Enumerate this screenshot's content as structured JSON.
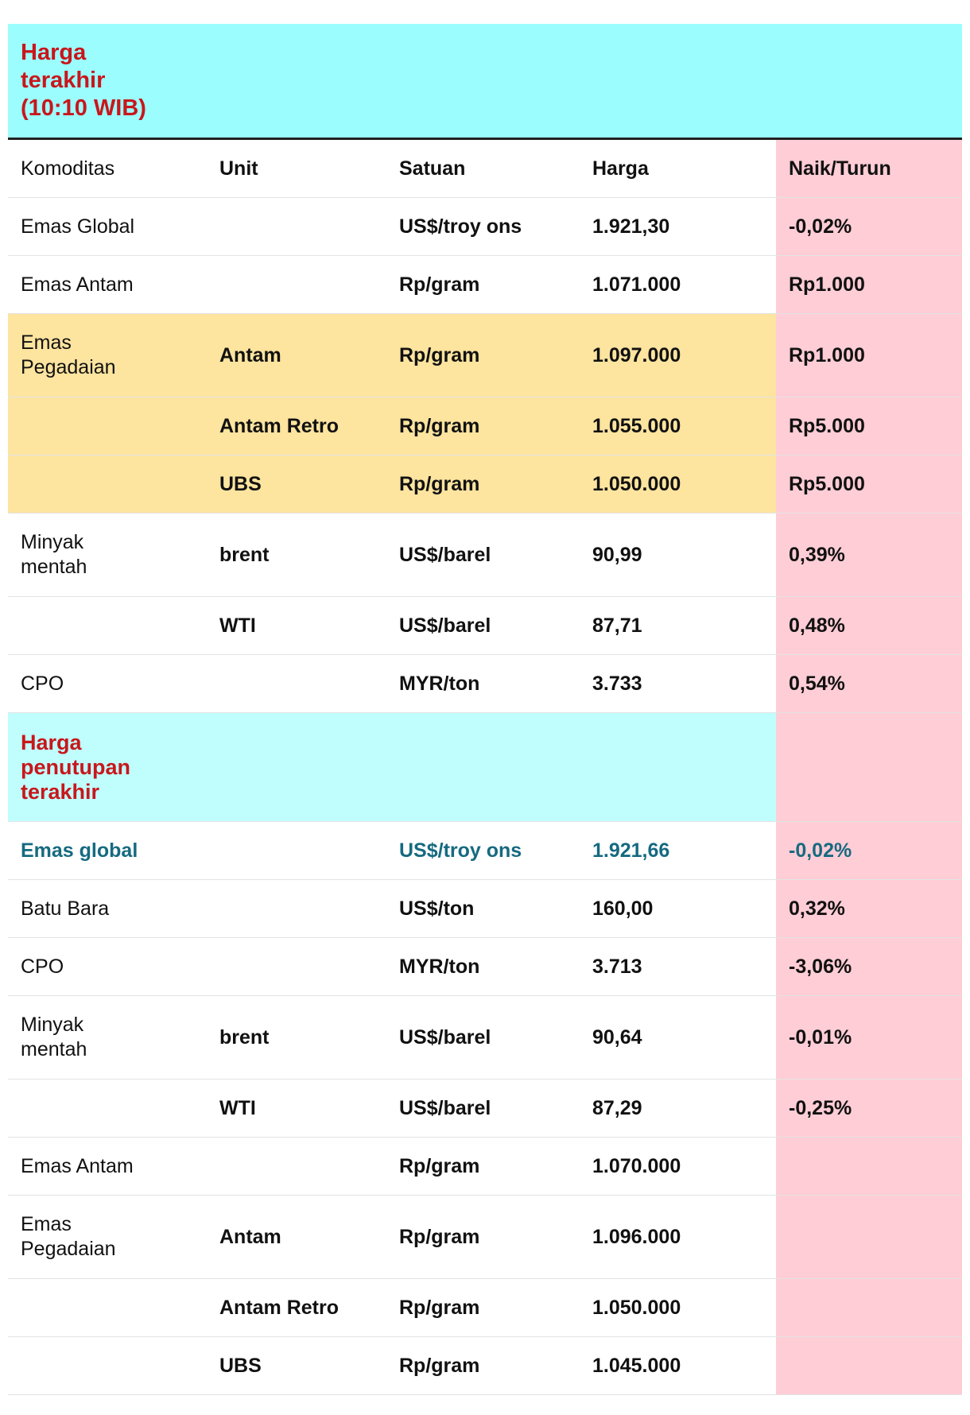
{
  "title_top": "Harga terakhir (10:10 WIB)",
  "title_closing": "Harga penutupan terakhir",
  "headers": {
    "komoditas": "Komoditas",
    "unit": "Unit",
    "satuan": "Satuan",
    "harga": "Harga",
    "naik_turun": "Naik/Turun"
  },
  "latest_rows": [
    {
      "komoditas": "Emas Global",
      "unit": "",
      "satuan": "US$/troy ons",
      "harga": "1.921,30",
      "change": "-0,02%"
    },
    {
      "komoditas": "Emas Antam",
      "unit": "",
      "satuan": "Rp/gram",
      "harga": "1.071.000",
      "change": "Rp1.000"
    },
    {
      "komoditas": "Emas Pegadaian",
      "unit": "Antam",
      "satuan": "Rp/gram",
      "harga": "1.097.000",
      "change": "Rp1.000"
    },
    {
      "komoditas": "",
      "unit": "Antam Retro",
      "satuan": "Rp/gram",
      "harga": "1.055.000",
      "change": "Rp5.000"
    },
    {
      "komoditas": "",
      "unit": "UBS",
      "satuan": "Rp/gram",
      "harga": "1.050.000",
      "change": "Rp5.000"
    },
    {
      "komoditas": "Minyak mentah",
      "unit": "brent",
      "satuan": "US$/barel",
      "harga": "90,99",
      "change": "0,39%"
    },
    {
      "komoditas": "",
      "unit": "WTI",
      "satuan": "US$/barel",
      "harga": "87,71",
      "change": "0,48%"
    },
    {
      "komoditas": "CPO",
      "unit": "",
      "satuan": "MYR/ton",
      "harga": "3.733",
      "change": "0,54%"
    }
  ],
  "closing_rows": [
    {
      "komoditas": "Emas global",
      "unit": "",
      "satuan": "US$/troy ons",
      "harga": "1.921,66",
      "change": "-0,02%"
    },
    {
      "komoditas": "Batu Bara",
      "unit": "",
      "satuan": "US$/ton",
      "harga": "160,00",
      "change": "0,32%"
    },
    {
      "komoditas": "CPO",
      "unit": "",
      "satuan": "MYR/ton",
      "harga": "3.713",
      "change": "-3,06%"
    },
    {
      "komoditas": "Minyak mentah",
      "unit": "brent",
      "satuan": "US$/barel",
      "harga": "90,64",
      "change": "-0,01%"
    },
    {
      "komoditas": "",
      "unit": "WTI",
      "satuan": "US$/barel",
      "harga": "87,29",
      "change": "-0,25%"
    },
    {
      "komoditas": "Emas Antam",
      "unit": "",
      "satuan": "Rp/gram",
      "harga": "1.070.000",
      "change": ""
    },
    {
      "komoditas": "Emas Pegadaian",
      "unit": "Antam",
      "satuan": "Rp/gram",
      "harga": "1.096.000",
      "change": ""
    },
    {
      "komoditas": "",
      "unit": "Antam Retro",
      "satuan": "Rp/gram",
      "harga": "1.050.000",
      "change": ""
    },
    {
      "komoditas": "",
      "unit": "UBS",
      "satuan": "Rp/gram",
      "harga": "1.045.000",
      "change": ""
    }
  ],
  "colors": {
    "title_bg": "#9cfdfe",
    "title_text": "#c8171c",
    "section_bg": "#c0fefe",
    "change_column_bg": "#ffcdd6",
    "pegadaian_highlight": "#fde49f",
    "emphasis_text": "#166a80"
  }
}
